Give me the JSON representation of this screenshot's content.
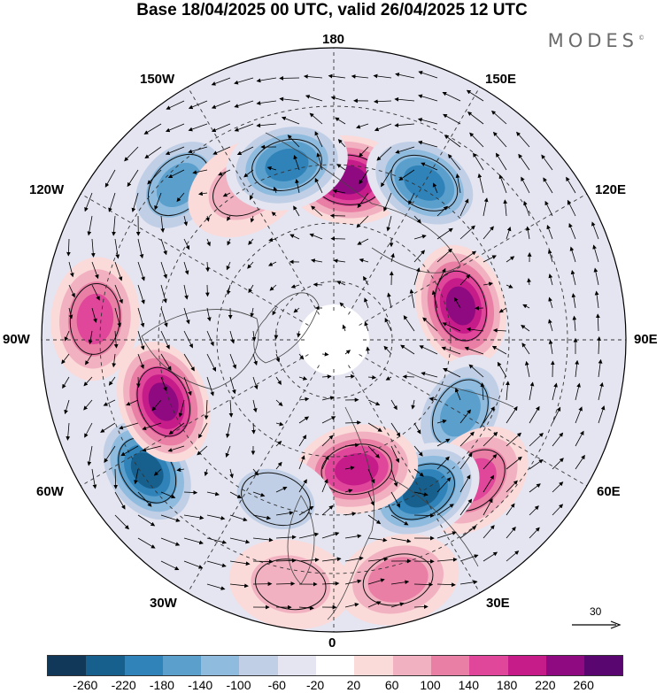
{
  "title": "Base 18/04/2025 00 UTC, valid 26/04/2025 12 UTC",
  "brand": "MODES",
  "brand_mark": "©",
  "longitudes": {
    "top": "180",
    "bottom": "0",
    "left": "90W",
    "right": "90E",
    "upper_left_1": "150W",
    "upper_left_2": "120W",
    "upper_right_1": "150E",
    "upper_right_2": "120E",
    "lower_left_1": "60W",
    "lower_left_2": "30W",
    "lower_right_1": "60E",
    "lower_right_2": "30E"
  },
  "colorbar": {
    "colors": [
      "#113858",
      "#175f8d",
      "#2f83b9",
      "#5b9fcd",
      "#8fbbde",
      "#c0cfe6",
      "#e4e5f1",
      "#ffffff",
      "#fbdada",
      "#f2b1c0",
      "#ea7fa6",
      "#e0469a",
      "#c61c8a",
      "#8f0a80",
      "#5a0670"
    ],
    "labels": [
      "-260",
      "-220",
      "-180",
      "-140",
      "-100",
      "-60",
      "-20",
      "20",
      "60",
      "100",
      "140",
      "180",
      "220",
      "260"
    ]
  },
  "reference_vector": "30",
  "anomalies": [
    {
      "lon": 175,
      "colat": 0.55,
      "value": 250
    },
    {
      "lon": 150,
      "colat": 0.62,
      "value": -200
    },
    {
      "lon": 105,
      "colat": 0.45,
      "value": 230
    },
    {
      "lon": 60,
      "colat": 0.5,
      "value": -150
    },
    {
      "lon": 45,
      "colat": 0.68,
      "value": 150
    },
    {
      "lon": 30,
      "colat": 0.6,
      "value": -240
    },
    {
      "lon": 10,
      "colat": 0.45,
      "value": 180
    },
    {
      "lon": -20,
      "colat": 0.58,
      "value": -80
    },
    {
      "lon": -55,
      "colat": 0.78,
      "value": -250
    },
    {
      "lon": -70,
      "colat": 0.62,
      "value": 240
    },
    {
      "lon": -95,
      "colat": 0.82,
      "value": 140
    },
    {
      "lon": -135,
      "colat": 0.75,
      "value": -150
    },
    {
      "lon": -150,
      "colat": 0.6,
      "value": 60
    },
    {
      "lon": -165,
      "colat": 0.62,
      "value": -180
    },
    {
      "lon": 15,
      "colat": 0.85,
      "value": 120
    },
    {
      "lon": -10,
      "colat": 0.85,
      "value": 80
    }
  ]
}
